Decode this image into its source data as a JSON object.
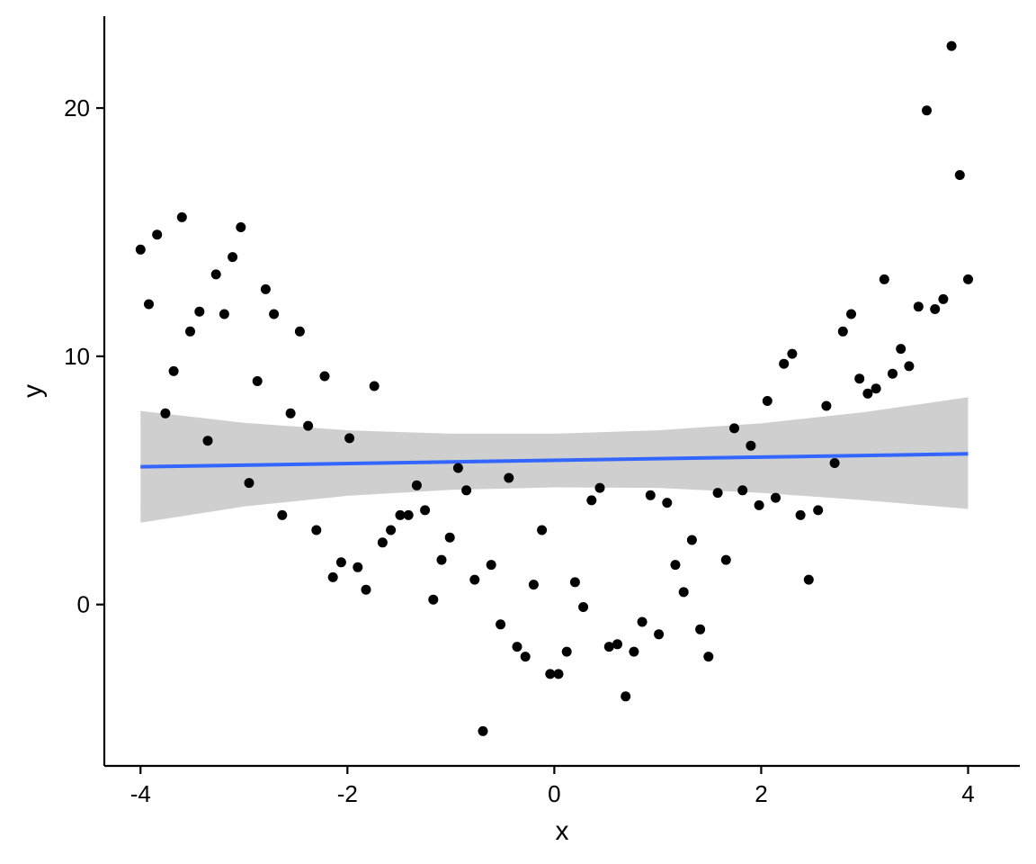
{
  "chart_data": {
    "type": "scatter",
    "title": "",
    "xlabel": "x",
    "ylabel": "y",
    "xlim": [
      -4.35,
      4.5
    ],
    "ylim": [
      -6.5,
      23.7
    ],
    "x_ticks": [
      -4,
      -2,
      0,
      2,
      4
    ],
    "y_ticks": [
      0,
      10,
      20
    ],
    "x_tick_labels": [
      "-4",
      "-2",
      "0",
      "2",
      "4"
    ],
    "y_tick_labels": [
      "0",
      "10",
      "20"
    ],
    "grid": false,
    "legend": "none",
    "colors": {
      "points": "#000000",
      "fit_line": "#3366ff",
      "confidence_band": "#bfbfbf",
      "axes": "#000000",
      "background": "#ffffff"
    },
    "points": [
      [
        -4.0,
        14.3
      ],
      [
        -3.92,
        12.1
      ],
      [
        -3.84,
        14.9
      ],
      [
        -3.76,
        7.7
      ],
      [
        -3.68,
        9.4
      ],
      [
        -3.6,
        15.6
      ],
      [
        -3.52,
        11.0
      ],
      [
        -3.43,
        11.8
      ],
      [
        -3.35,
        6.6
      ],
      [
        -3.27,
        13.3
      ],
      [
        -3.19,
        11.7
      ],
      [
        -3.11,
        14.0
      ],
      [
        -3.03,
        15.2
      ],
      [
        -2.95,
        4.9
      ],
      [
        -2.87,
        9.0
      ],
      [
        -2.79,
        12.7
      ],
      [
        -2.71,
        11.7
      ],
      [
        -2.63,
        3.6
      ],
      [
        -2.55,
        7.7
      ],
      [
        -2.46,
        11.0
      ],
      [
        -2.38,
        7.2
      ],
      [
        -2.3,
        3.0
      ],
      [
        -2.22,
        9.2
      ],
      [
        -2.14,
        1.1
      ],
      [
        -2.06,
        1.7
      ],
      [
        -1.98,
        6.7
      ],
      [
        -1.9,
        1.5
      ],
      [
        -1.82,
        0.6
      ],
      [
        -1.74,
        8.8
      ],
      [
        -1.66,
        2.5
      ],
      [
        -1.58,
        3.0
      ],
      [
        -1.49,
        3.6
      ],
      [
        -1.41,
        3.6
      ],
      [
        -1.33,
        4.8
      ],
      [
        -1.25,
        3.8
      ],
      [
        -1.17,
        0.2
      ],
      [
        -1.09,
        1.8
      ],
      [
        -1.01,
        2.7
      ],
      [
        -0.93,
        5.5
      ],
      [
        -0.85,
        4.6
      ],
      [
        -0.77,
        1.0
      ],
      [
        -0.69,
        -5.1
      ],
      [
        -0.61,
        1.6
      ],
      [
        -0.52,
        -0.8
      ],
      [
        -0.44,
        5.1
      ],
      [
        -0.36,
        -1.7
      ],
      [
        -0.28,
        -2.1
      ],
      [
        -0.2,
        0.8
      ],
      [
        -0.12,
        3.0
      ],
      [
        -0.04,
        -2.8
      ],
      [
        0.04,
        -2.8
      ],
      [
        0.12,
        -1.9
      ],
      [
        0.2,
        0.9
      ],
      [
        0.28,
        -0.1
      ],
      [
        0.36,
        4.2
      ],
      [
        0.44,
        4.7
      ],
      [
        0.53,
        -1.7
      ],
      [
        0.61,
        -1.6
      ],
      [
        0.69,
        -3.7
      ],
      [
        0.77,
        -1.9
      ],
      [
        0.85,
        -0.7
      ],
      [
        0.93,
        4.4
      ],
      [
        1.01,
        -1.2
      ],
      [
        1.09,
        4.1
      ],
      [
        1.17,
        1.6
      ],
      [
        1.25,
        0.5
      ],
      [
        1.33,
        2.6
      ],
      [
        1.41,
        -1.0
      ],
      [
        1.49,
        -2.1
      ],
      [
        1.58,
        4.5
      ],
      [
        1.66,
        1.8
      ],
      [
        1.74,
        7.1
      ],
      [
        1.82,
        4.6
      ],
      [
        1.9,
        6.4
      ],
      [
        1.98,
        4.0
      ],
      [
        2.06,
        8.2
      ],
      [
        2.14,
        4.3
      ],
      [
        2.22,
        9.7
      ],
      [
        2.3,
        10.1
      ],
      [
        2.38,
        3.6
      ],
      [
        2.46,
        1.0
      ],
      [
        2.55,
        3.8
      ],
      [
        2.63,
        8.0
      ],
      [
        2.71,
        5.7
      ],
      [
        2.79,
        11.0
      ],
      [
        2.87,
        11.7
      ],
      [
        2.95,
        9.1
      ],
      [
        3.03,
        8.5
      ],
      [
        3.11,
        8.7
      ],
      [
        3.19,
        13.1
      ],
      [
        3.27,
        9.3
      ],
      [
        3.35,
        10.3
      ],
      [
        3.43,
        9.6
      ],
      [
        3.52,
        12.0
      ],
      [
        3.6,
        19.9
      ],
      [
        3.68,
        11.9
      ],
      [
        3.76,
        12.3
      ],
      [
        3.84,
        22.5
      ],
      [
        3.92,
        17.3
      ],
      [
        4.0,
        13.1
      ]
    ],
    "fit_line": {
      "x": [
        -4,
        4
      ],
      "y": [
        5.55,
        6.07
      ]
    },
    "confidence_band": [
      {
        "x": -4,
        "lower": 3.3,
        "upper": 7.8
      },
      {
        "x": -3,
        "lower": 3.95,
        "upper": 7.32
      },
      {
        "x": -2,
        "lower": 4.38,
        "upper": 7.02
      },
      {
        "x": -1,
        "lower": 4.62,
        "upper": 6.88
      },
      {
        "x": 0,
        "lower": 4.72,
        "upper": 6.88
      },
      {
        "x": 1,
        "lower": 4.7,
        "upper": 7.02
      },
      {
        "x": 2,
        "lower": 4.5,
        "upper": 7.3
      },
      {
        "x": 3,
        "lower": 4.2,
        "upper": 7.75
      },
      {
        "x": 4,
        "lower": 3.85,
        "upper": 8.35
      }
    ]
  }
}
